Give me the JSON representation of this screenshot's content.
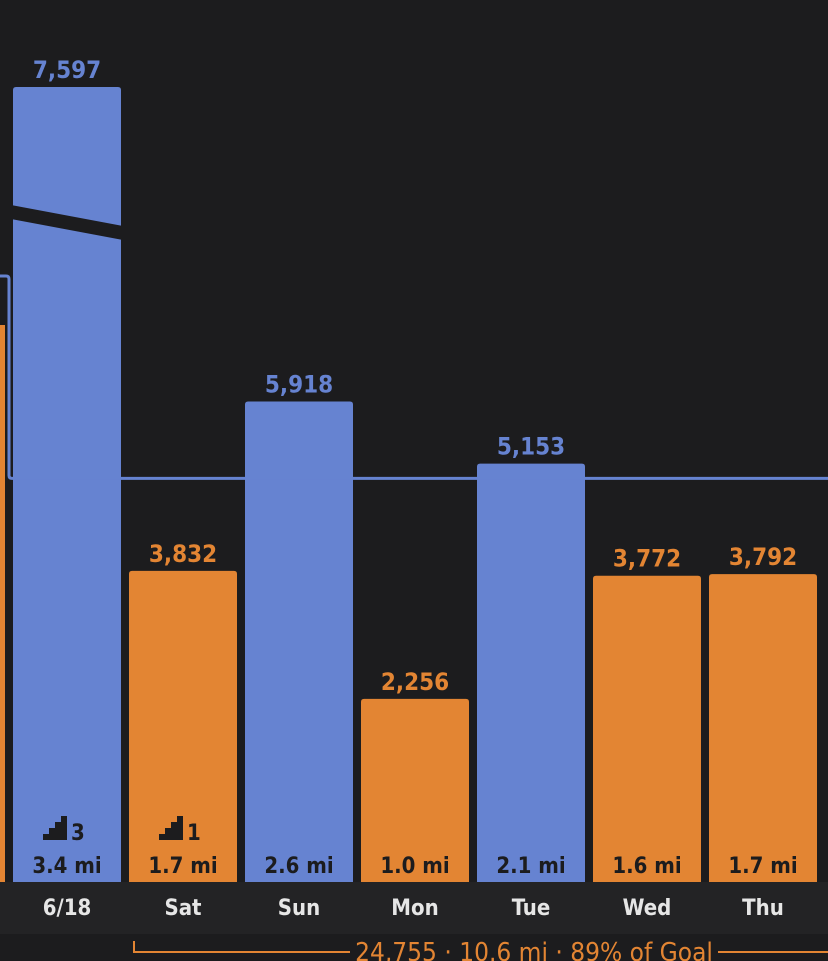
{
  "colors": {
    "background": "#1c1c1e",
    "goal_met": "#6683d1",
    "goal_missed": "#e38533",
    "axis_band": "#232325",
    "text_light": "#e6e6e6"
  },
  "chart_data": {
    "type": "bar",
    "goal_line": 4970,
    "ylim": [
      0,
      9000
    ],
    "bars": [
      {
        "label": "6/18",
        "value": 7597,
        "value_text": "7,597",
        "distance": "3.4 mi",
        "floors": "3",
        "status": "met",
        "axis_break": true
      },
      {
        "label": "Sat",
        "value": 3832,
        "value_text": "3,832",
        "distance": "1.7 mi",
        "floors": "1",
        "status": "missed"
      },
      {
        "label": "Sun",
        "value": 5918,
        "value_text": "5,918",
        "distance": "2.6 mi",
        "status": "met"
      },
      {
        "label": "Mon",
        "value": 2256,
        "value_text": "2,256",
        "distance": "1.0 mi",
        "status": "missed"
      },
      {
        "label": "Tue",
        "value": 5153,
        "value_text": "5,153",
        "distance": "2.1 mi",
        "status": "met"
      },
      {
        "label": "Wed",
        "value": 3772,
        "value_text": "3,772",
        "distance": "1.6 mi",
        "status": "missed"
      },
      {
        "label": "Thu",
        "value": 3792,
        "value_text": "3,792",
        "distance": "1.7 mi",
        "status": "missed"
      }
    ],
    "summary": "24,755 · 10.6 mi · 89% of Goal"
  }
}
